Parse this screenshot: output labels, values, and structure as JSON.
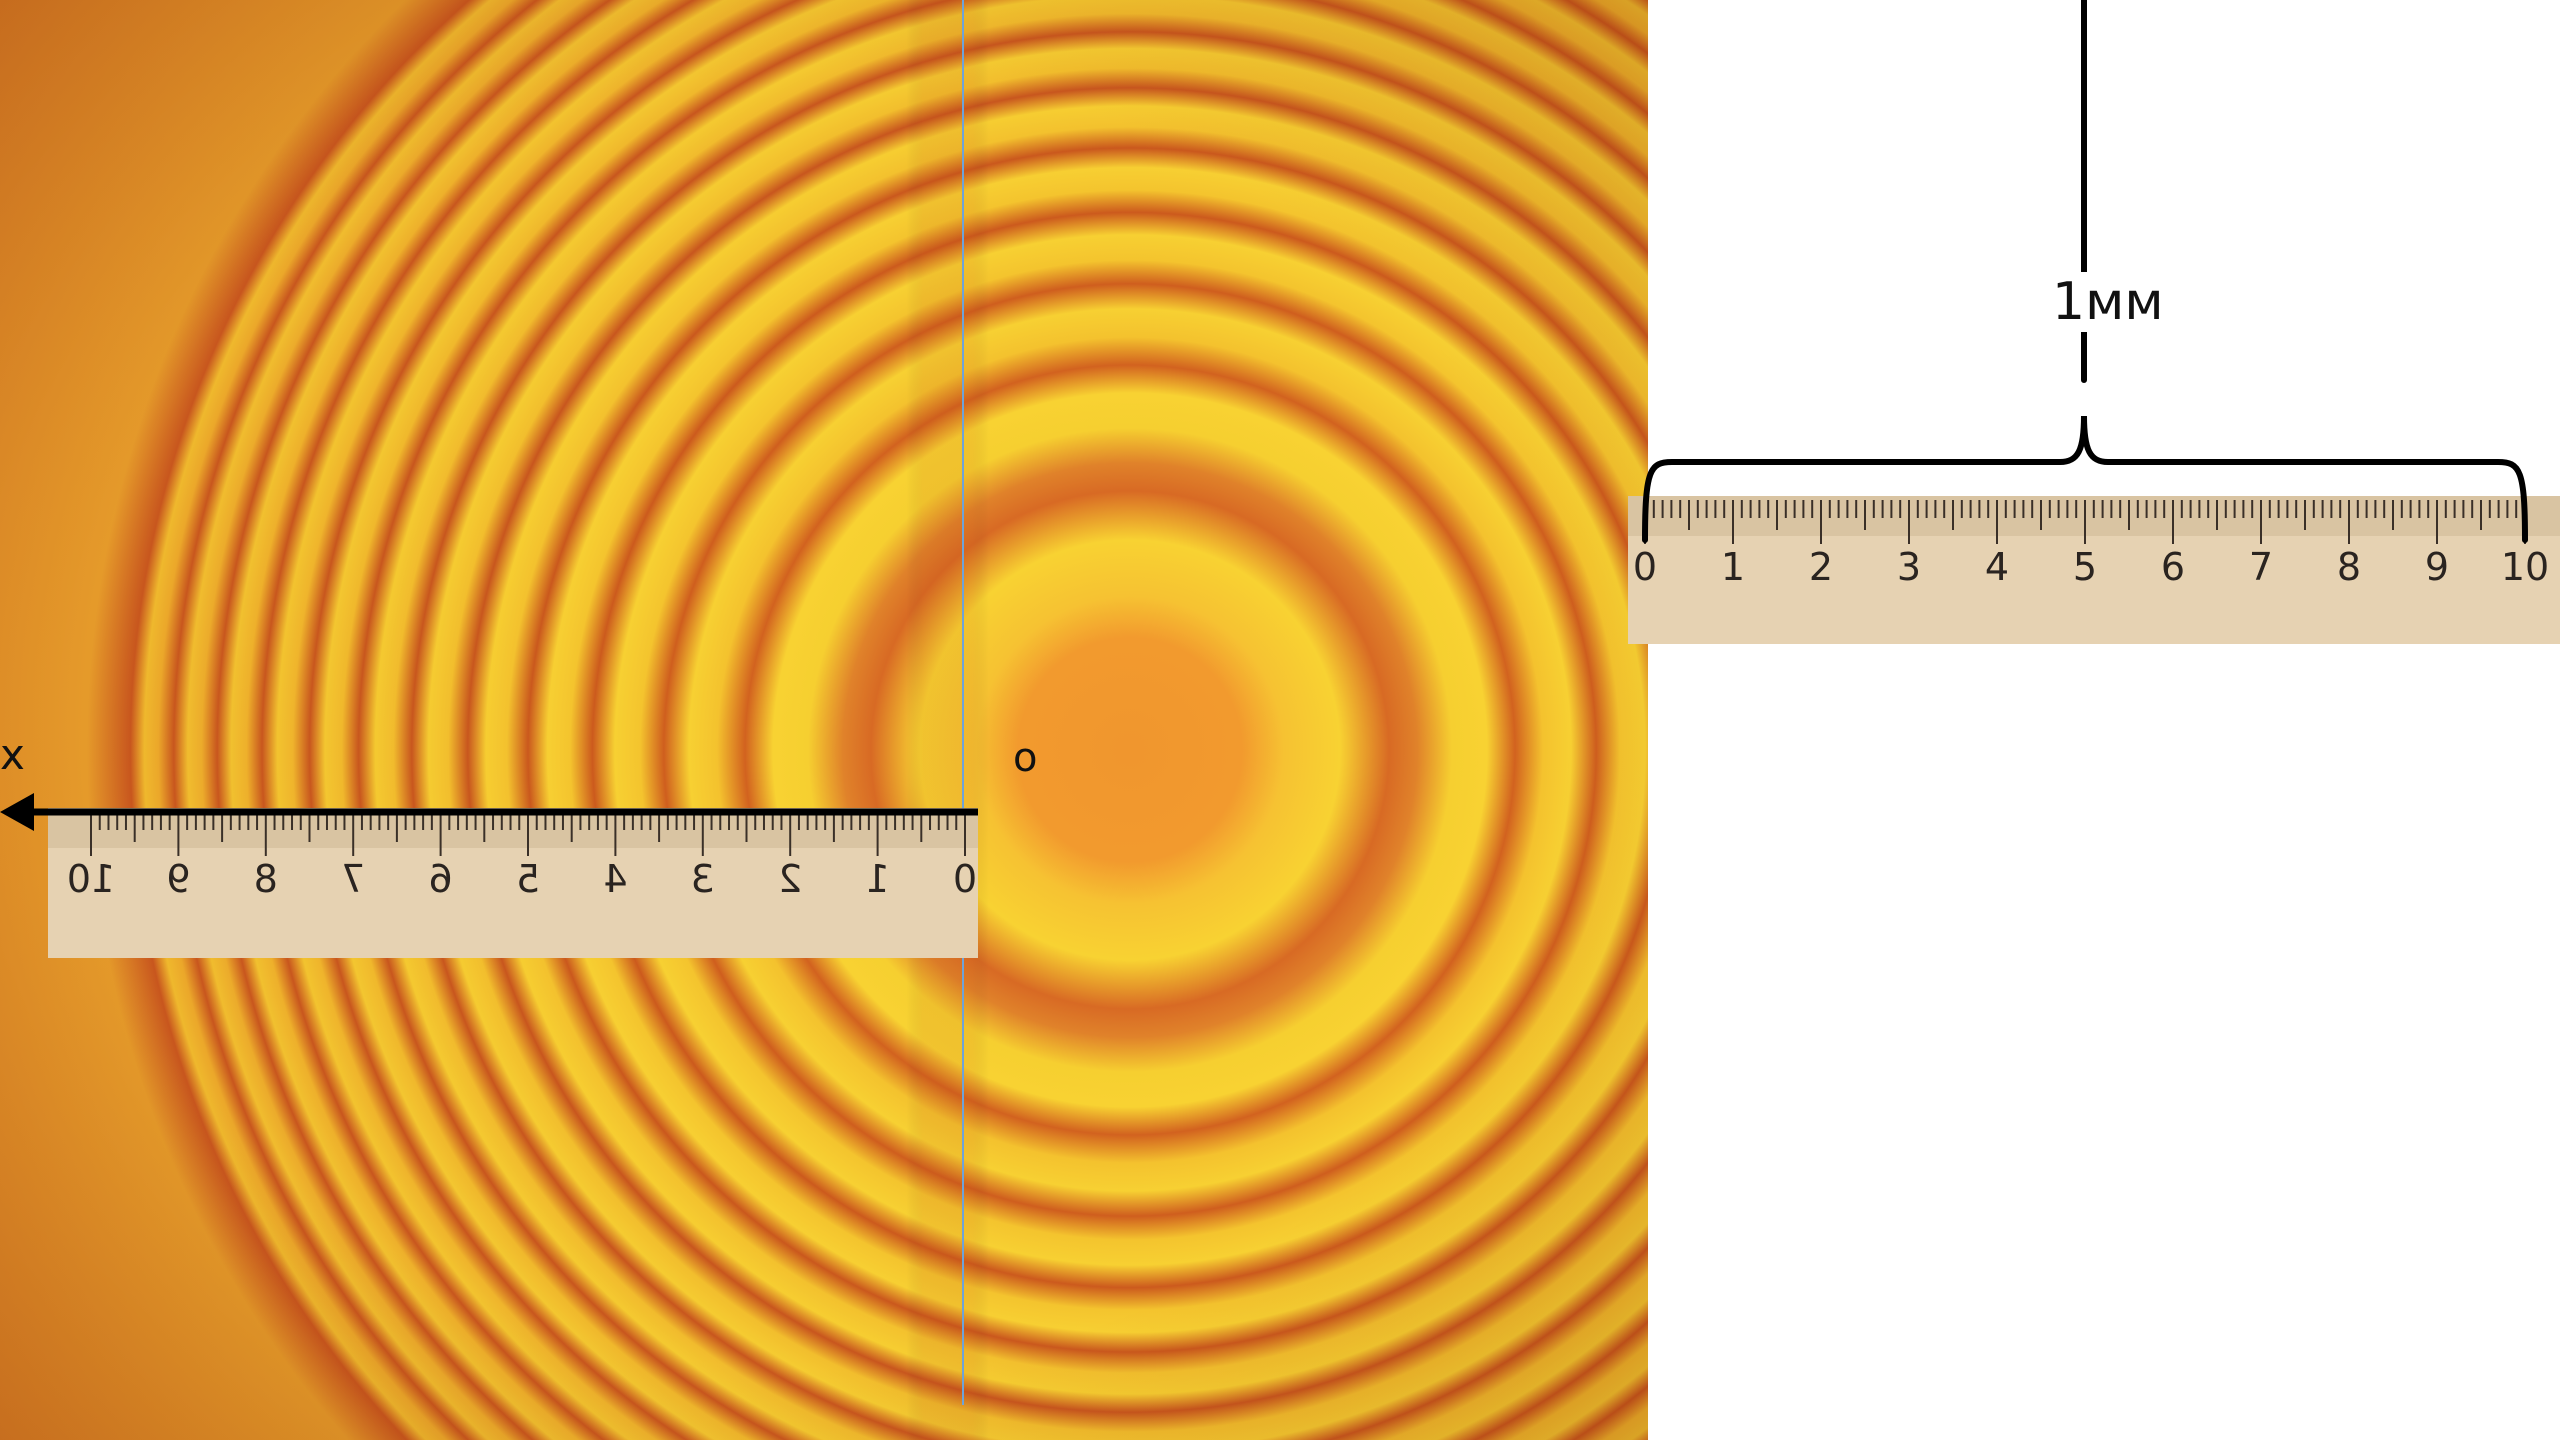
{
  "labels": {
    "axis": "x",
    "origin": "o",
    "scale": "1мм"
  },
  "ruler_main": {
    "numbers": [
      "0",
      "1",
      "2",
      "3",
      "4",
      "5",
      "6",
      "7",
      "8",
      "9",
      "10"
    ],
    "direction": "mirrored, increasing to the left"
  },
  "ruler_ref": {
    "numbers": [
      "0",
      "1",
      "2",
      "3",
      "4",
      "5",
      "6",
      "7",
      "8",
      "9",
      "10"
    ]
  },
  "colors": {
    "fringe_bright": "#f8d232",
    "fringe_dark": "#c8561e",
    "center": "#f0962e",
    "ruler_wood": "#e6d2b2",
    "ink": "#111111",
    "center_line": "#6fa3d8"
  }
}
